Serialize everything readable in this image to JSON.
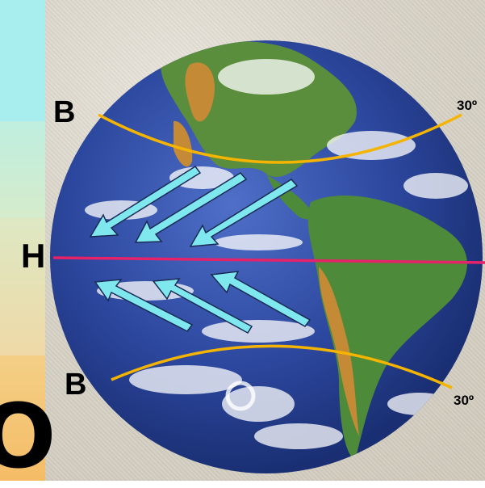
{
  "labels": {
    "b_north": "B",
    "b_south": "B",
    "h_equator": "H",
    "lat_north": "30º",
    "lat_south": "30º",
    "edge_letter": "O"
  },
  "colors": {
    "latitude_line": "#f5b400",
    "equator_line": "#e5226a",
    "arrow_fill": "#7fe8ef",
    "arrow_stroke": "#1a2a55",
    "ocean": "#2f4fa8",
    "land": "#4d8a3a",
    "desert": "#c58a36",
    "strip_top": "#a9eeee",
    "strip_mid": "#e7ddb8",
    "strip_bottom": "#f5c070"
  },
  "icons": {
    "trade_wind_arrows": "arrow-icon"
  }
}
